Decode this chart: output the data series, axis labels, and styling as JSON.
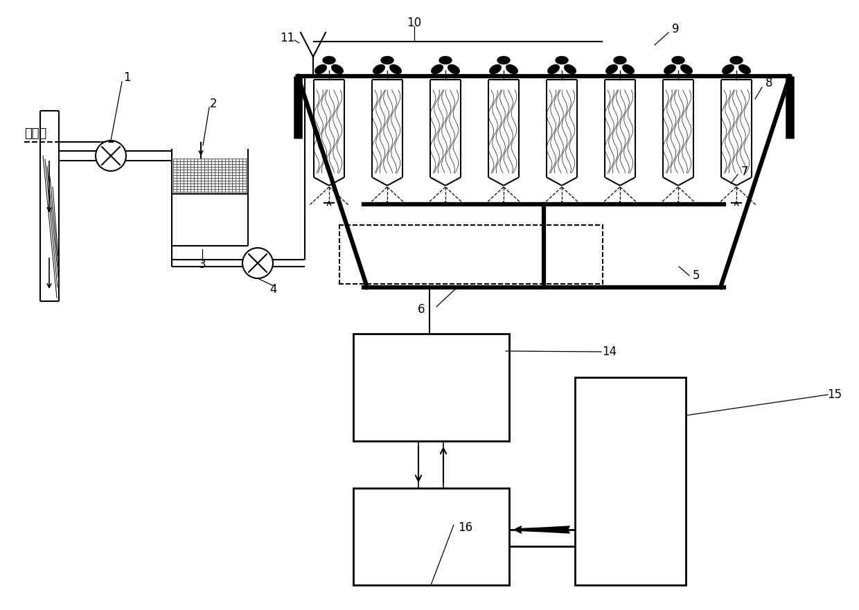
{
  "background_color": "#ffffff",
  "line_color": "#000000",
  "sea_text": "海平面"
}
